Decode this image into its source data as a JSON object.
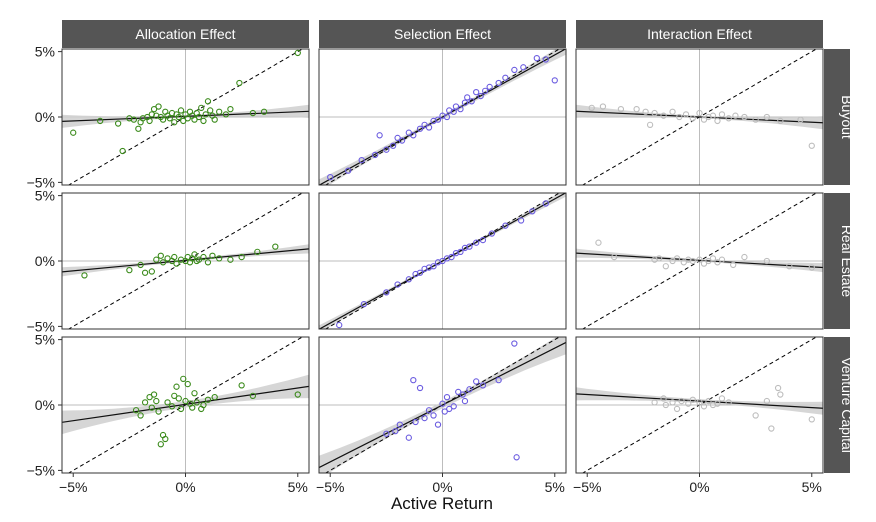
{
  "figure": {
    "xlabel": "Active Return",
    "columns": [
      "Allocation Effect",
      "Selection Effect",
      "Interaction Effect"
    ],
    "rows": [
      "Buyout",
      "Real Estate",
      "Venture Capital"
    ],
    "x_ticks": [
      "−5%",
      "0%",
      "5%"
    ],
    "y_ticks": [
      "5%",
      "0%",
      "−5%"
    ]
  },
  "colors": {
    "strip_bg": "#555555",
    "strip_text": "#ffffff",
    "allocation": "#3a8a1a",
    "selection": "#6b5ce0",
    "interaction": "#bdbdbd",
    "band": "#cfcfcf",
    "fit": "#111111",
    "grid": "#bdbdbd"
  },
  "chart_data": {
    "type": "scatter",
    "xlabel": "Active Return",
    "xlim": [
      -5.5,
      5.5
    ],
    "ylim": [
      -5.2,
      5.2
    ],
    "grid": "zero-lines",
    "reference_line": "y = x (dashed)",
    "panels": [
      {
        "col": "Allocation Effect",
        "row": "Buyout",
        "fit": {
          "intercept": 0.05,
          "slope": 0.07
        },
        "band": [
          0.1,
          0.5
        ],
        "points": [
          [
            -5.0,
            -1.2
          ],
          [
            -3.8,
            -0.3
          ],
          [
            -3.0,
            -0.5
          ],
          [
            -2.8,
            -2.6
          ],
          [
            -2.5,
            -0.1
          ],
          [
            -2.3,
            -0.2
          ],
          [
            -2.1,
            -0.9
          ],
          [
            -2.0,
            -0.4
          ],
          [
            -1.9,
            -0.1
          ],
          [
            -1.7,
            0.0
          ],
          [
            -1.6,
            -0.3
          ],
          [
            -1.5,
            0.2
          ],
          [
            -1.4,
            0.6
          ],
          [
            -1.3,
            0.1
          ],
          [
            -1.2,
            0.8
          ],
          [
            -1.1,
            0.0
          ],
          [
            -1.0,
            -0.2
          ],
          [
            -0.9,
            0.4
          ],
          [
            -0.8,
            0.1
          ],
          [
            -0.7,
            -0.1
          ],
          [
            -0.6,
            0.3
          ],
          [
            -0.5,
            -0.4
          ],
          [
            -0.4,
            0.2
          ],
          [
            -0.3,
            0.0
          ],
          [
            -0.2,
            0.5
          ],
          [
            -0.1,
            -0.3
          ],
          [
            0.0,
            0.2
          ],
          [
            0.1,
            -0.1
          ],
          [
            0.2,
            0.4
          ],
          [
            0.3,
            0.1
          ],
          [
            0.4,
            -0.2
          ],
          [
            0.5,
            0.3
          ],
          [
            0.6,
            0.0
          ],
          [
            0.7,
            0.7
          ],
          [
            0.8,
            -0.3
          ],
          [
            0.9,
            0.2
          ],
          [
            1.0,
            1.2
          ],
          [
            1.1,
            0.5
          ],
          [
            1.2,
            0.1
          ],
          [
            1.3,
            -0.2
          ],
          [
            1.5,
            0.4
          ],
          [
            1.8,
            0.2
          ],
          [
            2.0,
            0.6
          ],
          [
            2.4,
            2.6
          ],
          [
            3.0,
            0.3
          ],
          [
            3.5,
            0.4
          ],
          [
            5.0,
            4.9
          ]
        ]
      },
      {
        "col": "Selection Effect",
        "row": "Buyout",
        "fit": {
          "intercept": 0.0,
          "slope": 0.95
        },
        "band": [
          0.15,
          0.45
        ],
        "points": [
          [
            -5.0,
            -4.6
          ],
          [
            -4.2,
            -4.1
          ],
          [
            -3.6,
            -3.3
          ],
          [
            -3.0,
            -2.9
          ],
          [
            -2.8,
            -1.4
          ],
          [
            -2.5,
            -2.5
          ],
          [
            -2.2,
            -2.2
          ],
          [
            -2.0,
            -1.6
          ],
          [
            -1.8,
            -1.8
          ],
          [
            -1.5,
            -1.2
          ],
          [
            -1.3,
            -1.4
          ],
          [
            -1.0,
            -0.9
          ],
          [
            -0.8,
            -0.6
          ],
          [
            -0.6,
            -0.8
          ],
          [
            -0.4,
            -0.3
          ],
          [
            -0.2,
            -0.2
          ],
          [
            0.0,
            0.1
          ],
          [
            0.2,
            0.0
          ],
          [
            0.3,
            0.5
          ],
          [
            0.5,
            0.4
          ],
          [
            0.6,
            0.8
          ],
          [
            0.8,
            0.6
          ],
          [
            1.0,
            1.1
          ],
          [
            1.1,
            1.5
          ],
          [
            1.3,
            1.2
          ],
          [
            1.5,
            1.9
          ],
          [
            1.7,
            1.6
          ],
          [
            1.9,
            2.0
          ],
          [
            2.1,
            2.3
          ],
          [
            2.5,
            2.6
          ],
          [
            2.8,
            3.0
          ],
          [
            3.2,
            3.6
          ],
          [
            3.6,
            3.8
          ],
          [
            4.2,
            4.5
          ],
          [
            4.6,
            4.4
          ],
          [
            5.0,
            2.8
          ]
        ]
      },
      {
        "col": "Interaction Effect",
        "row": "Buyout",
        "fit": {
          "intercept": 0.0,
          "slope": -0.08
        },
        "band": [
          0.1,
          0.5
        ],
        "points": [
          [
            -4.8,
            0.7
          ],
          [
            -4.3,
            0.8
          ],
          [
            -3.5,
            0.6
          ],
          [
            -2.8,
            0.6
          ],
          [
            -2.4,
            0.4
          ],
          [
            -2.2,
            -0.6
          ],
          [
            -2.0,
            0.3
          ],
          [
            -1.6,
            0.1
          ],
          [
            -1.2,
            0.4
          ],
          [
            -0.9,
            0.0
          ],
          [
            -0.6,
            0.2
          ],
          [
            -0.3,
            -0.1
          ],
          [
            0.0,
            0.3
          ],
          [
            0.2,
            -0.2
          ],
          [
            0.4,
            0.0
          ],
          [
            0.6,
            0.1
          ],
          [
            0.8,
            -0.3
          ],
          [
            1.0,
            0.2
          ],
          [
            1.3,
            -0.1
          ],
          [
            1.6,
            0.1
          ],
          [
            2.0,
            0.0
          ],
          [
            2.5,
            -0.2
          ],
          [
            3.0,
            0.0
          ],
          [
            3.6,
            -0.3
          ],
          [
            4.5,
            -0.2
          ],
          [
            5.0,
            -2.2
          ]
        ]
      },
      {
        "col": "Allocation Effect",
        "row": "Real Estate",
        "fit": {
          "intercept": 0.05,
          "slope": 0.16
        },
        "band": [
          0.1,
          0.35
        ],
        "points": [
          [
            -4.5,
            -1.1
          ],
          [
            -2.5,
            -0.7
          ],
          [
            -2.0,
            -0.3
          ],
          [
            -1.8,
            -0.9
          ],
          [
            -1.5,
            -0.8
          ],
          [
            -1.3,
            0.1
          ],
          [
            -1.1,
            0.4
          ],
          [
            -1.0,
            -0.1
          ],
          [
            -0.8,
            0.2
          ],
          [
            -0.6,
            0.0
          ],
          [
            -0.5,
            0.3
          ],
          [
            -0.4,
            -0.2
          ],
          [
            -0.2,
            0.1
          ],
          [
            0.0,
            0.0
          ],
          [
            0.1,
            0.3
          ],
          [
            0.2,
            -0.1
          ],
          [
            0.3,
            0.2
          ],
          [
            0.4,
            0.5
          ],
          [
            0.5,
            0.0
          ],
          [
            0.6,
            0.1
          ],
          [
            0.8,
            0.3
          ],
          [
            1.0,
            -0.1
          ],
          [
            1.2,
            0.4
          ],
          [
            1.5,
            0.2
          ],
          [
            2.0,
            0.1
          ],
          [
            2.5,
            0.3
          ],
          [
            3.2,
            0.7
          ],
          [
            4.0,
            1.1
          ]
        ]
      },
      {
        "col": "Selection Effect",
        "row": "Real Estate",
        "fit": {
          "intercept": 0.0,
          "slope": 0.95
        },
        "band": [
          0.1,
          0.3
        ],
        "points": [
          [
            -4.6,
            -4.9
          ],
          [
            -3.5,
            -3.3
          ],
          [
            -2.5,
            -2.4
          ],
          [
            -2.0,
            -1.8
          ],
          [
            -1.5,
            -1.4
          ],
          [
            -1.2,
            -1.0
          ],
          [
            -1.0,
            -0.9
          ],
          [
            -0.8,
            -0.6
          ],
          [
            -0.6,
            -0.5
          ],
          [
            -0.4,
            -0.4
          ],
          [
            -0.2,
            -0.1
          ],
          [
            0.0,
            0.0
          ],
          [
            0.2,
            0.2
          ],
          [
            0.4,
            0.3
          ],
          [
            0.6,
            0.6
          ],
          [
            0.8,
            0.7
          ],
          [
            1.0,
            1.0
          ],
          [
            1.2,
            1.1
          ],
          [
            1.5,
            1.4
          ],
          [
            1.8,
            1.6
          ],
          [
            2.2,
            2.1
          ],
          [
            2.8,
            2.7
          ],
          [
            3.5,
            3.1
          ],
          [
            4.0,
            3.8
          ],
          [
            4.6,
            4.4
          ]
        ]
      },
      {
        "col": "Interaction Effect",
        "row": "Real Estate",
        "fit": {
          "intercept": 0.05,
          "slope": -0.1
        },
        "band": [
          0.1,
          0.35
        ],
        "points": [
          [
            -4.5,
            1.4
          ],
          [
            -3.8,
            0.3
          ],
          [
            -2.0,
            0.1
          ],
          [
            -1.8,
            0.2
          ],
          [
            -1.5,
            -0.4
          ],
          [
            -1.2,
            0.0
          ],
          [
            -1.0,
            0.2
          ],
          [
            -0.7,
            -0.1
          ],
          [
            -0.5,
            0.1
          ],
          [
            -0.3,
            0.0
          ],
          [
            0.0,
            0.1
          ],
          [
            0.2,
            -0.2
          ],
          [
            0.4,
            0.0
          ],
          [
            0.6,
            0.2
          ],
          [
            0.8,
            -0.1
          ],
          [
            1.0,
            0.1
          ],
          [
            1.5,
            -0.3
          ],
          [
            2.0,
            0.3
          ],
          [
            3.0,
            0.0
          ],
          [
            4.0,
            -0.4
          ],
          [
            5.0,
            -0.5
          ]
        ]
      },
      {
        "col": "Allocation Effect",
        "row": "Venture Capital",
        "fit": {
          "intercept": 0.05,
          "slope": 0.25
        },
        "band": [
          0.25,
          0.9
        ],
        "points": [
          [
            -2.2,
            -0.4
          ],
          [
            -2.0,
            -0.8
          ],
          [
            -1.8,
            0.2
          ],
          [
            -1.6,
            0.6
          ],
          [
            -1.5,
            -0.2
          ],
          [
            -1.4,
            0.8
          ],
          [
            -1.3,
            0.3
          ],
          [
            -1.2,
            -0.5
          ],
          [
            -1.1,
            -3.0
          ],
          [
            -1.0,
            -2.3
          ],
          [
            -0.9,
            -2.6
          ],
          [
            -0.8,
            0.2
          ],
          [
            -0.6,
            -0.1
          ],
          [
            -0.5,
            0.7
          ],
          [
            -0.4,
            1.4
          ],
          [
            -0.3,
            0.5
          ],
          [
            -0.2,
            -0.3
          ],
          [
            -0.1,
            2.0
          ],
          [
            0.0,
            0.3
          ],
          [
            0.1,
            1.6
          ],
          [
            0.2,
            0.1
          ],
          [
            0.3,
            -0.2
          ],
          [
            0.4,
            0.9
          ],
          [
            0.5,
            0.2
          ],
          [
            0.7,
            -0.3
          ],
          [
            0.8,
            0.0
          ],
          [
            1.0,
            0.4
          ],
          [
            1.3,
            0.6
          ],
          [
            2.5,
            1.5
          ],
          [
            3.0,
            0.7
          ],
          [
            5.0,
            0.8
          ]
        ]
      },
      {
        "col": "Selection Effect",
        "row": "Venture Capital",
        "fit": {
          "intercept": 0.0,
          "slope": 0.87
        },
        "band": [
          0.25,
          0.9
        ],
        "points": [
          [
            -2.5,
            -2.2
          ],
          [
            -2.1,
            -2.0
          ],
          [
            -1.9,
            -1.5
          ],
          [
            -1.5,
            -2.5
          ],
          [
            -1.3,
            1.9
          ],
          [
            -1.2,
            -1.3
          ],
          [
            -1.0,
            1.3
          ],
          [
            -0.8,
            -1.0
          ],
          [
            -0.6,
            -0.4
          ],
          [
            -0.4,
            -0.8
          ],
          [
            -0.2,
            -1.5
          ],
          [
            0.0,
            0.1
          ],
          [
            0.1,
            -0.5
          ],
          [
            0.2,
            0.6
          ],
          [
            0.3,
            -0.3
          ],
          [
            0.5,
            -0.1
          ],
          [
            0.7,
            1.0
          ],
          [
            0.9,
            0.8
          ],
          [
            1.0,
            0.3
          ],
          [
            1.2,
            1.2
          ],
          [
            1.5,
            1.8
          ],
          [
            1.8,
            1.5
          ],
          [
            2.5,
            1.9
          ],
          [
            3.2,
            4.7
          ],
          [
            3.3,
            -4.0
          ]
        ]
      },
      {
        "col": "Interaction Effect",
        "row": "Venture Capital",
        "fit": {
          "intercept": 0.3,
          "slope": -0.1
        },
        "band": [
          0.15,
          0.5
        ],
        "points": [
          [
            -2.0,
            0.2
          ],
          [
            -1.6,
            0.5
          ],
          [
            -1.5,
            0.0
          ],
          [
            -1.2,
            0.2
          ],
          [
            -1.0,
            -0.3
          ],
          [
            -0.8,
            0.3
          ],
          [
            -0.5,
            0.1
          ],
          [
            -0.3,
            0.4
          ],
          [
            0.0,
            0.2
          ],
          [
            0.2,
            -0.1
          ],
          [
            0.4,
            0.3
          ],
          [
            0.6,
            0.0
          ],
          [
            0.8,
            0.1
          ],
          [
            1.0,
            0.5
          ],
          [
            1.3,
            0.2
          ],
          [
            2.5,
            -0.8
          ],
          [
            3.0,
            0.3
          ],
          [
            3.2,
            -1.8
          ],
          [
            3.5,
            1.3
          ],
          [
            3.6,
            0.8
          ],
          [
            5.0,
            -1.1
          ]
        ]
      }
    ]
  }
}
